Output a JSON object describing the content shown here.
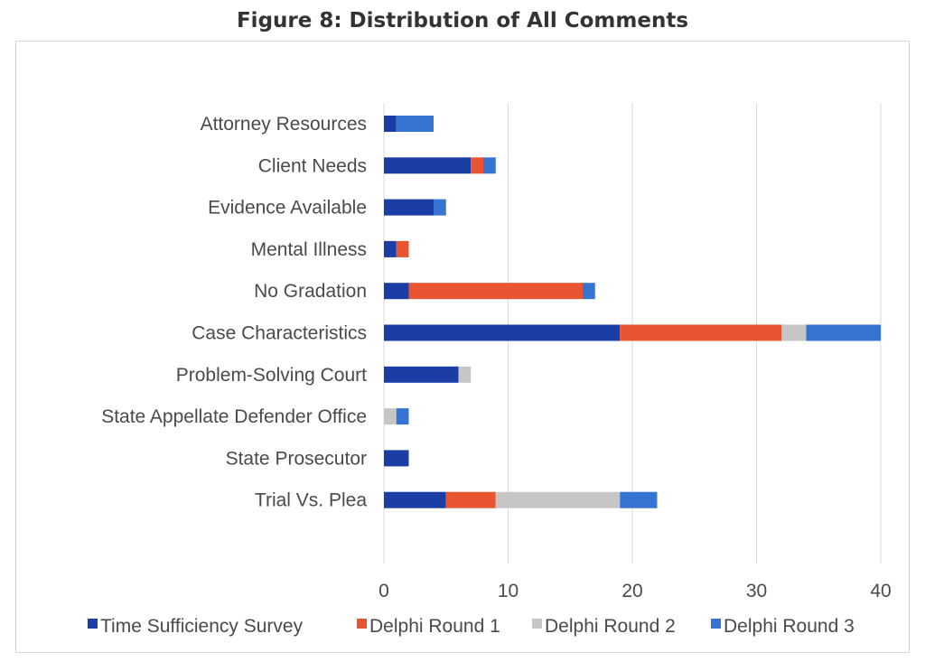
{
  "chart_data": {
    "type": "bar",
    "orientation": "horizontal",
    "stacked": true,
    "title": "Figure 8: Distribution of All Comments",
    "xlabel": "",
    "ylabel": "",
    "xlim": [
      0,
      40
    ],
    "ticks": [
      0,
      10,
      20,
      30,
      40
    ],
    "grid": true,
    "legend_position": "bottom",
    "categories": [
      "Attorney Resources",
      "Client Needs",
      "Evidence Available",
      "Mental Illness",
      "No Gradation",
      "Case Characteristics",
      "Problem-Solving Court",
      "State Appellate Defender Office",
      "State Prosecutor",
      "Trial Vs. Plea"
    ],
    "series": [
      {
        "name": "Time Sufficiency Survey",
        "color": "#1b3ea6",
        "values": [
          1,
          7,
          4,
          1,
          2,
          19,
          6,
          0,
          2,
          5
        ]
      },
      {
        "name": "Delphi Round 1",
        "color": "#e85530",
        "values": [
          0,
          1,
          0,
          1,
          14,
          13,
          0,
          0,
          0,
          4
        ]
      },
      {
        "name": "Delphi Round 2",
        "color": "#c6c6c6",
        "values": [
          0,
          0,
          0,
          0,
          0,
          2,
          1,
          1,
          0,
          10
        ]
      },
      {
        "name": "Delphi Round 3",
        "color": "#3574d3",
        "values": [
          3,
          1,
          1,
          0,
          1,
          6,
          0,
          1,
          0,
          3
        ]
      }
    ]
  }
}
